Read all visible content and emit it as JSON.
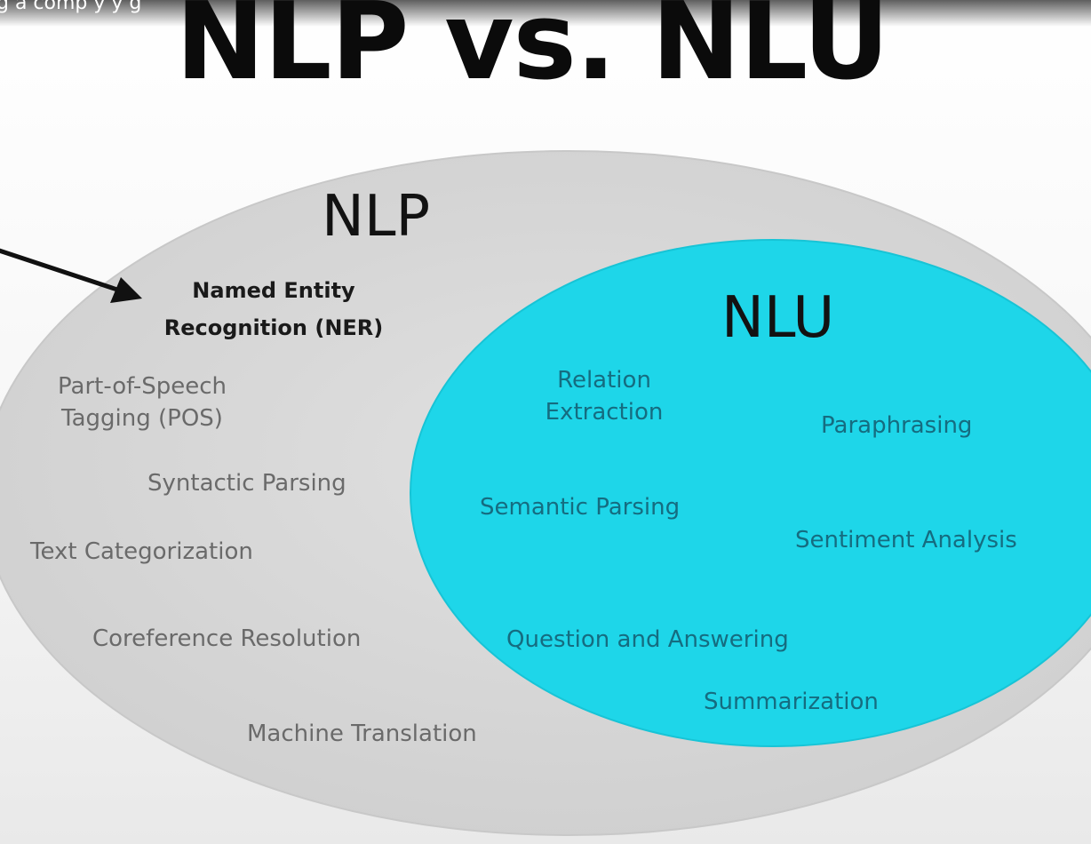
{
  "header": {
    "caption_fragment": "g a comp   y    y                       g"
  },
  "slide": {
    "title": "NLP vs. NLU"
  },
  "diagram": {
    "outer_label": "NLP",
    "inner_label": "NLU",
    "highlighted_task": {
      "line1": "Named Entity",
      "line2": "Recognition (NER)"
    },
    "nlp_tasks": {
      "pos_line1": "Part-of-Speech",
      "pos_line2": "Tagging (POS)",
      "syntactic": "Syntactic Parsing",
      "text_cat": "Text Categorization",
      "coref": "Coreference Resolution",
      "mt": "Machine Translation"
    },
    "nlu_tasks": {
      "rel_line1": "Relation",
      "rel_line2": "Extraction",
      "paraphrasing": "Paraphrasing",
      "semantic": "Semantic Parsing",
      "sentiment": "Sentiment Analysis",
      "qa": "Question and Answering",
      "summarization": "Summarization"
    },
    "colors": {
      "outer_fill": "#d8d8d8",
      "inner_fill": "#1ed6e9",
      "arrow": "#111111"
    }
  }
}
